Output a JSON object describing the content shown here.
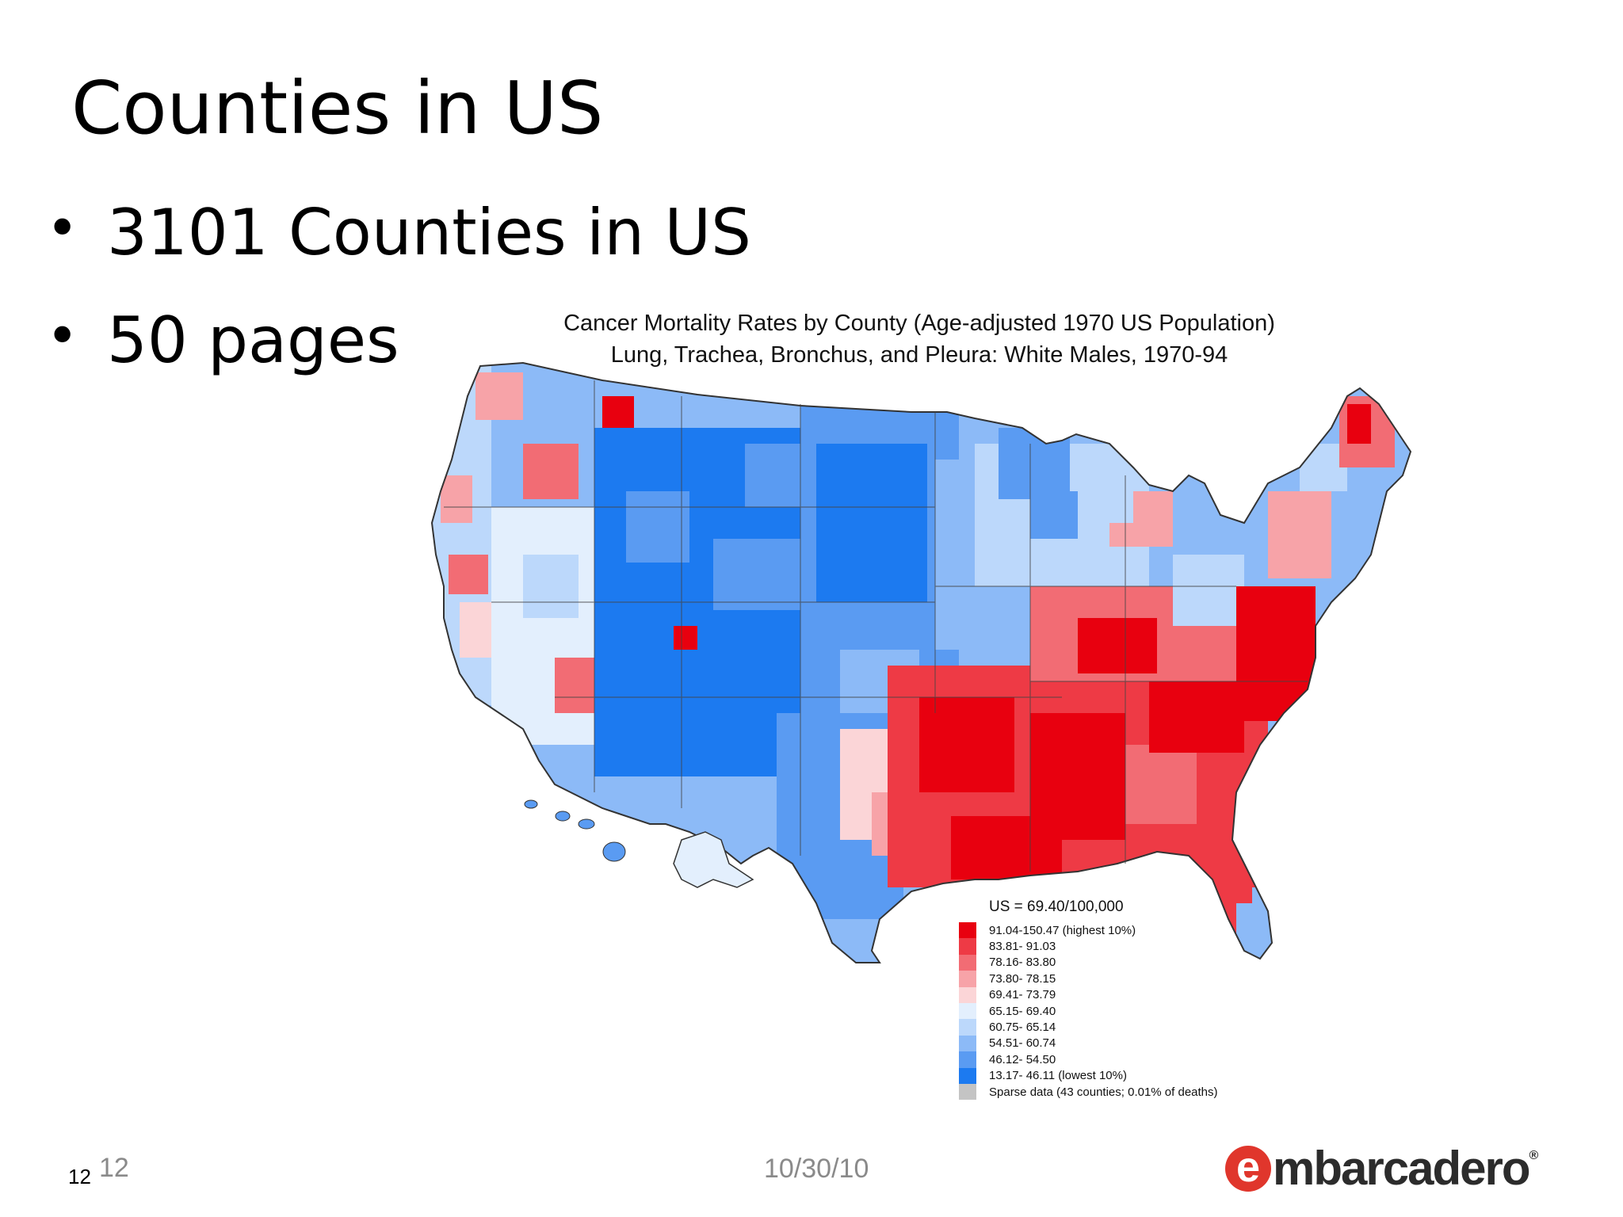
{
  "slide": {
    "title": "Counties in US",
    "bullets": [
      "3101 Counties in US",
      "50 pages"
    ]
  },
  "map": {
    "title_line1": "Cancer Mortality Rates by County (Age-adjusted 1970 US Population)",
    "title_line2": "Lung, Trachea, Bronchus, and Pleura:  White Males, 1970-94"
  },
  "legend": {
    "us_rate": "US = 69.40/100,000",
    "classes": [
      {
        "label": "91.04-150.47 (highest 10%)",
        "color": "#e8000f"
      },
      {
        "label": "83.81- 91.03",
        "color": "#ee3a45"
      },
      {
        "label": "78.16- 83.80",
        "color": "#f26c74"
      },
      {
        "label": "73.80- 78.15",
        "color": "#f7a3a8"
      },
      {
        "label": "69.41- 73.79",
        "color": "#fbd5d7"
      },
      {
        "label": "65.15- 69.40",
        "color": "#e3effd"
      },
      {
        "label": "60.75- 65.14",
        "color": "#bcd8fb"
      },
      {
        "label": "54.51- 60.74",
        "color": "#8cbaf7"
      },
      {
        "label": "46.12- 54.50",
        "color": "#5a9bf2"
      },
      {
        "label": "13.17- 46.11 (lowest 10%)",
        "color": "#1c7af0"
      },
      {
        "label": "Sparse data (43 counties; 0.01% of deaths)",
        "color": "#c4c4c4"
      }
    ]
  },
  "footer": {
    "slide_number": "12",
    "slide_number_gray": "12",
    "date": "10/30/10",
    "logo_initial": "e",
    "logo_rest": "mbarcadero",
    "logo_reg": "®"
  }
}
